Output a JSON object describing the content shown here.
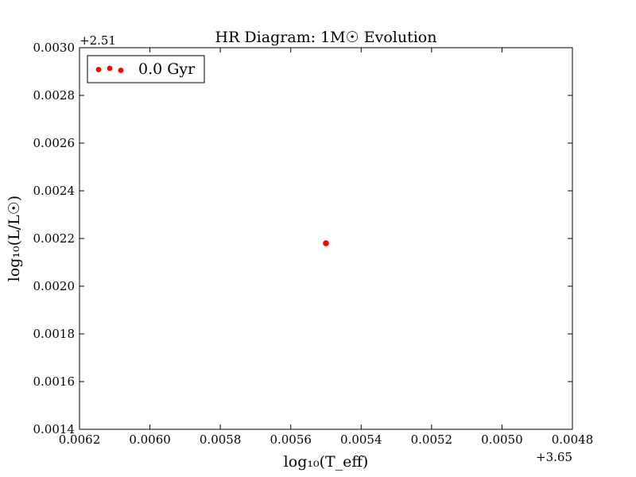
{
  "chart_data": {
    "type": "scatter",
    "title": "HR Diagram: 1M☉ Evolution",
    "xlabel": "log₁₀(T_eff)",
    "ylabel": "log₁₀(L/L☉)",
    "x_offset_label": "+3.65",
    "y_offset_label": "+2.51",
    "xlim": [
      0.0062,
      0.0048
    ],
    "ylim": [
      0.0014,
      0.003
    ],
    "x_inverted": true,
    "x_ticks": [
      "0.0062",
      "0.0060",
      "0.0058",
      "0.0056",
      "0.0054",
      "0.0052",
      "0.0050",
      "0.0048"
    ],
    "y_ticks": [
      "0.0014",
      "0.0016",
      "0.0018",
      "0.0020",
      "0.0022",
      "0.0024",
      "0.0026",
      "0.0028",
      "0.0030"
    ],
    "legend_position": "top-left",
    "grid": false,
    "series": [
      {
        "name": "0.0 Gyr",
        "color": "#ff0000",
        "points": [
          {
            "x": 0.0055,
            "y": 0.00218
          }
        ]
      }
    ]
  }
}
